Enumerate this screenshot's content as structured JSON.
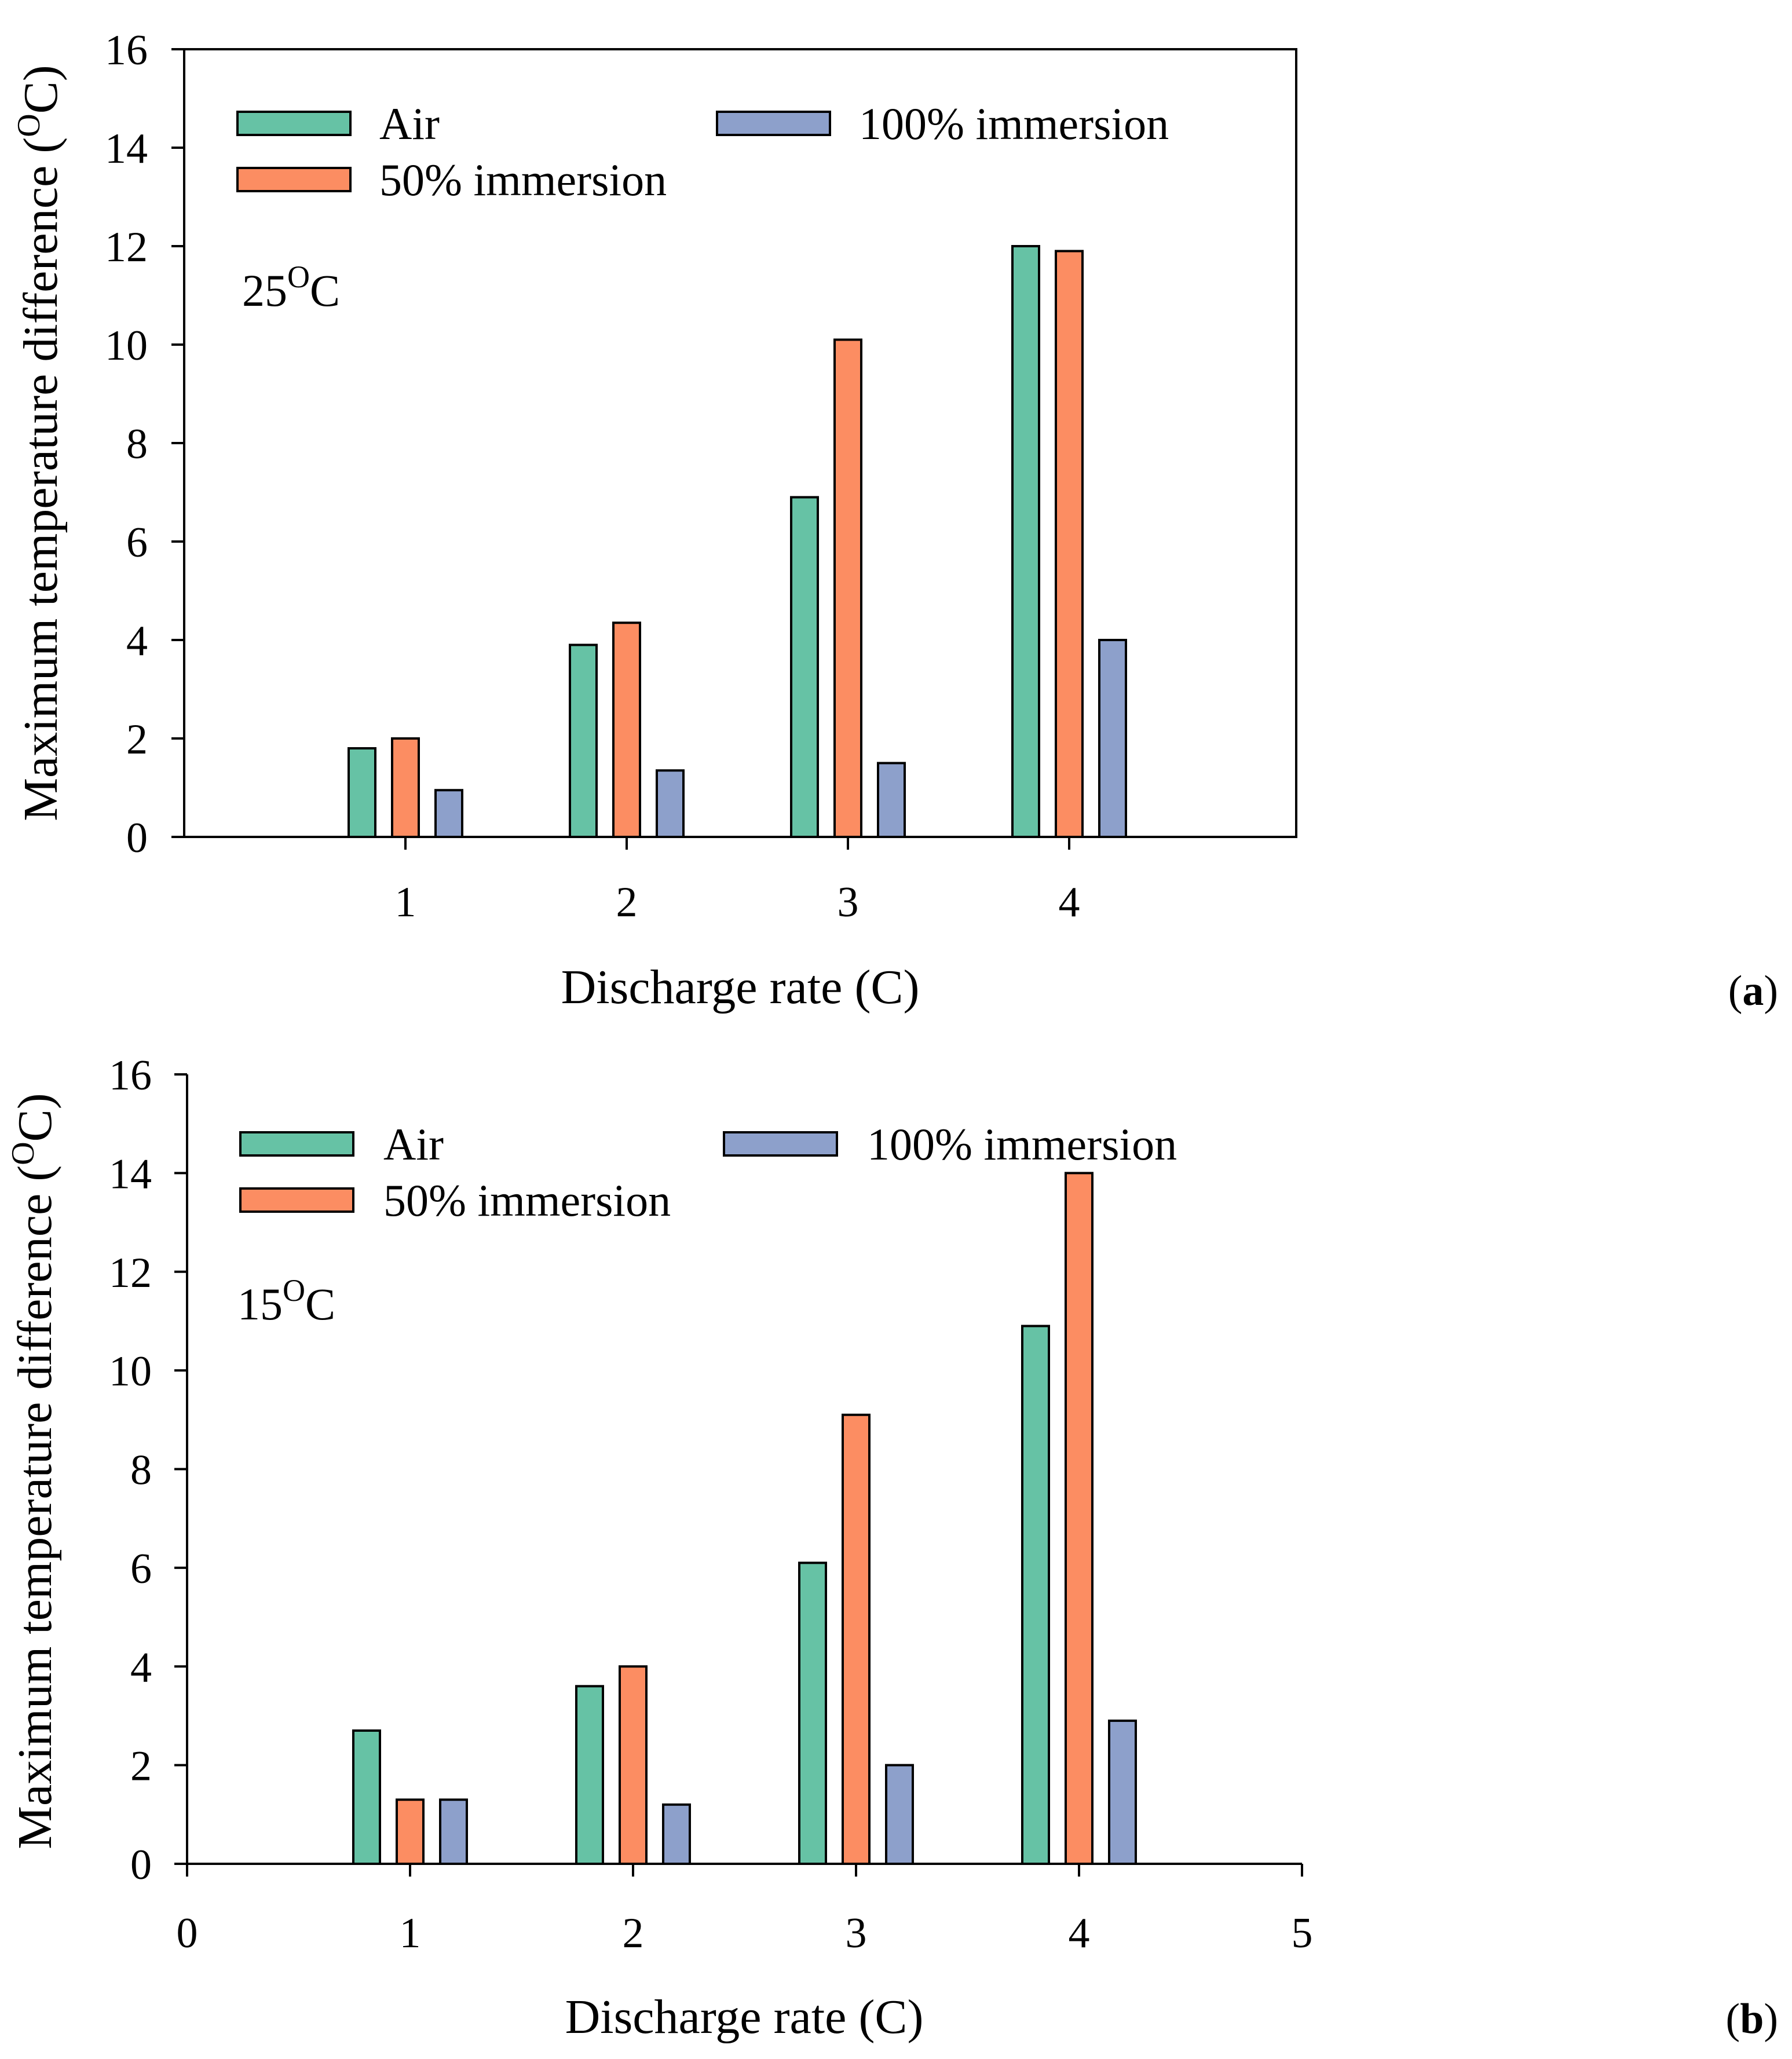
{
  "colors": {
    "air": "#66c2a5",
    "immersion50": "#fc8d62",
    "immersion100": "#8da0cb",
    "stroke": "#000000"
  },
  "chart_data": [
    {
      "type": "bar",
      "panel": "(a)",
      "panel_open": "(",
      "panel_letter": "a",
      "panel_close": ")",
      "annotation": {
        "text": "25",
        "sup": "O",
        "unit": "C"
      },
      "xlabel": "Discharge rate (C)",
      "ylabel": {
        "before": "Maximum temperature difference (",
        "sup": "O",
        "after": "C)"
      },
      "ylim": [
        0,
        16
      ],
      "yticks": [
        0,
        2,
        4,
        6,
        8,
        10,
        12,
        14,
        16
      ],
      "xlim": [
        0,
        5
      ],
      "xticks": [
        1,
        2,
        3,
        4
      ],
      "categories": [
        1,
        2,
        3,
        4
      ],
      "series": [
        {
          "name": "Air",
          "key": "air",
          "values": [
            1.8,
            3.9,
            6.9,
            12.0
          ]
        },
        {
          "name": "50% immersion",
          "key": "immersion50",
          "values": [
            2.0,
            4.35,
            10.1,
            11.9
          ]
        },
        {
          "name": "100% immersion",
          "key": "immersion100",
          "values": [
            0.95,
            1.35,
            1.5,
            4.0
          ]
        }
      ],
      "legend": [
        "Air",
        "100% immersion",
        "50% immersion"
      ]
    },
    {
      "type": "bar",
      "panel": "(b)",
      "panel_open": "(",
      "panel_letter": "b",
      "panel_close": ")",
      "annotation": {
        "text": "15",
        "sup": "O",
        "unit": "C"
      },
      "xlabel": "Discharge rate (C)",
      "ylabel": {
        "before": "Maximum temperature difference (",
        "sup": "O",
        "after": "C)"
      },
      "ylim": [
        0,
        16
      ],
      "yticks": [
        0,
        2,
        4,
        6,
        8,
        10,
        12,
        14,
        16
      ],
      "xlim": [
        0,
        5
      ],
      "xticks": [
        0,
        1,
        2,
        3,
        4,
        5
      ],
      "categories": [
        1,
        2,
        3,
        4
      ],
      "series": [
        {
          "name": "Air",
          "key": "air",
          "values": [
            2.7,
            3.6,
            6.1,
            10.9
          ]
        },
        {
          "name": "50% immersion",
          "key": "immersion50",
          "values": [
            1.3,
            4.0,
            9.1,
            14.0
          ]
        },
        {
          "name": "100% immersion",
          "key": "immersion100",
          "values": [
            1.3,
            1.2,
            2.0,
            2.9
          ]
        }
      ],
      "legend": [
        "Air",
        "100% immersion",
        "50% immersion"
      ]
    }
  ]
}
